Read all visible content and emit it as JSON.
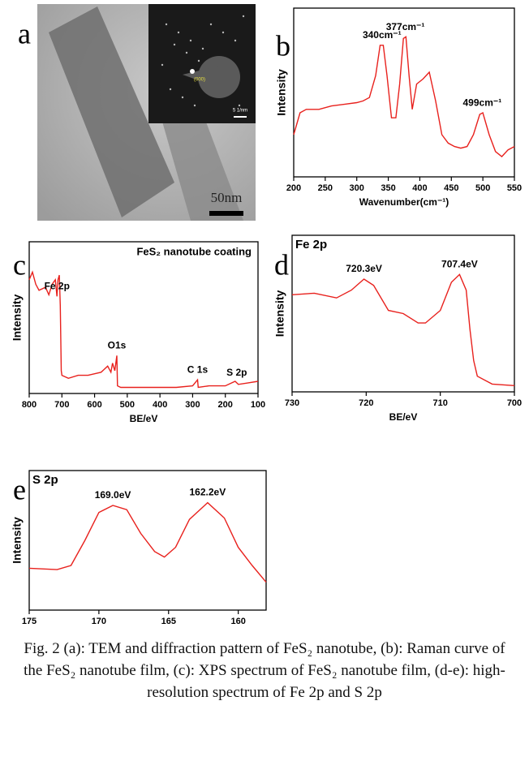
{
  "image_panel": {
    "label": "a",
    "scale_bar": "50nm",
    "inset_scale": "5 1/nm",
    "inset_spot": "(000)"
  },
  "chart_data": [
    {
      "type": "line",
      "label": "b",
      "ylabel": "Intensity",
      "xlabel": "Wavenumber(cm⁻¹)",
      "color": "#e8211d",
      "x": [
        200,
        210,
        220,
        240,
        260,
        280,
        300,
        310,
        320,
        330,
        337,
        342,
        348,
        355,
        362,
        368,
        374,
        378,
        383,
        388,
        395,
        405,
        415,
        425,
        435,
        445,
        455,
        465,
        475,
        485,
        495,
        500,
        510,
        520,
        530,
        540,
        550
      ],
      "values": [
        25,
        38,
        40,
        40,
        42,
        43,
        44,
        45,
        47,
        60,
        78,
        78,
        60,
        35,
        35,
        55,
        82,
        83,
        60,
        40,
        55,
        58,
        62,
        45,
        25,
        20,
        18,
        17,
        18,
        25,
        37,
        38,
        25,
        15,
        12,
        16,
        18
      ],
      "xlim": [
        200,
        550
      ],
      "xticks": [
        200,
        250,
        300,
        350,
        400,
        450,
        500,
        550
      ],
      "ylim": [
        0,
        100
      ],
      "annotations": [
        {
          "text": "340cm⁻¹",
          "x": 340
        },
        {
          "text": "377cm⁻¹",
          "x": 377
        },
        {
          "text": "499cm⁻¹",
          "x": 499
        }
      ]
    },
    {
      "type": "line",
      "label": "c",
      "title": "FeS₂ nanotube coating",
      "ylabel": "Intensity",
      "xlabel": "BE/eV",
      "color": "#e8211d",
      "x": [
        800,
        790,
        780,
        770,
        750,
        740,
        730,
        720,
        715,
        712,
        708,
        705,
        702,
        700,
        680,
        650,
        620,
        600,
        580,
        560,
        550,
        545,
        538,
        532,
        530,
        520,
        500,
        450,
        400,
        350,
        300,
        285,
        283,
        250,
        200,
        170,
        160,
        130,
        100
      ],
      "values": [
        75,
        80,
        72,
        68,
        70,
        65,
        72,
        75,
        64,
        75,
        78,
        58,
        15,
        12,
        10,
        12,
        12,
        13,
        14,
        18,
        14,
        20,
        15,
        25,
        5,
        4,
        4,
        4,
        4,
        4,
        5,
        9,
        4,
        5,
        5,
        8,
        6,
        7,
        8
      ],
      "xlim": [
        800,
        100
      ],
      "xticks": [
        800,
        700,
        600,
        500,
        400,
        300,
        200,
        100
      ],
      "ylim": [
        0,
        100
      ],
      "annotations": [
        {
          "text": "Fe 2p",
          "x": 715
        },
        {
          "text": "O1s",
          "x": 532
        },
        {
          "text": "C 1s",
          "x": 285
        },
        {
          "text": "S 2p",
          "x": 165
        }
      ]
    },
    {
      "type": "line",
      "label": "d",
      "title": "Fe 2p",
      "ylabel": "Intensity",
      "xlabel": "BE/eV",
      "color": "#e8211d",
      "x": [
        730,
        727,
        724,
        722,
        720.3,
        719,
        717,
        715,
        713,
        712,
        710,
        708.5,
        707.4,
        706.5,
        706,
        705.5,
        705,
        703,
        700
      ],
      "values": [
        62,
        63,
        60,
        65,
        72,
        68,
        52,
        50,
        44,
        44,
        52,
        70,
        75,
        65,
        40,
        20,
        10,
        5,
        4
      ],
      "xlim": [
        730,
        700
      ],
      "xticks": [
        730,
        720,
        710,
        700
      ],
      "ylim": [
        0,
        100
      ],
      "annotations": [
        {
          "text": "720.3eV",
          "x": 720.3
        },
        {
          "text": "707.4eV",
          "x": 707.4
        }
      ]
    },
    {
      "type": "line",
      "label": "e",
      "title": "S 2p",
      "ylabel": "Intensity",
      "color": "#e8211d",
      "x": [
        175,
        173,
        172,
        171,
        170,
        169,
        168,
        167,
        166,
        165.3,
        164.5,
        163.5,
        162.2,
        161,
        160,
        159,
        158
      ],
      "values": [
        30,
        29,
        32,
        50,
        70,
        75,
        72,
        55,
        42,
        38,
        45,
        65,
        77,
        66,
        45,
        32,
        20
      ],
      "xlim": [
        175,
        158
      ],
      "xticks": [
        175,
        170,
        165,
        160
      ],
      "ylim": [
        0,
        100
      ],
      "annotations": [
        {
          "text": "169.0eV",
          "x": 169.0
        },
        {
          "text": "162.2eV",
          "x": 162.2
        }
      ]
    }
  ],
  "caption": "Fig. 2 (a): TEM and diffraction pattern of FeS₂ nanotube, (b): Raman curve of the FeS₂ nanotube film, (c): XPS spectrum of FeS₂ nanotube film, (d-e): high-resolution spectrum of Fe 2p and S 2p"
}
